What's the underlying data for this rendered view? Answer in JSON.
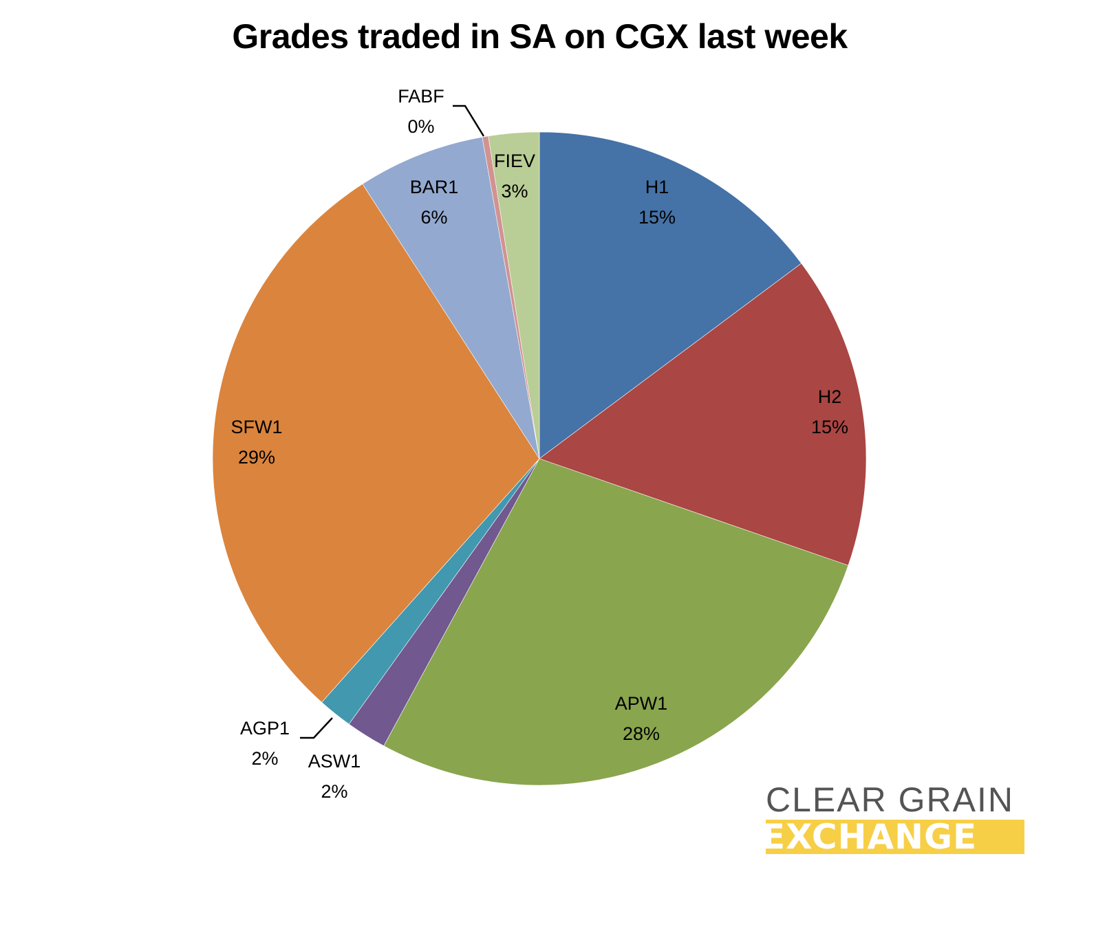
{
  "chart_data": {
    "type": "pie",
    "title": "Grades traded in SA on CGX last week",
    "start_angle_deg": 0,
    "direction": "clockwise",
    "slices": [
      {
        "label": "H1",
        "value": 14.8,
        "display": "15%",
        "color": "#4572a7"
      },
      {
        "label": "H2",
        "value": 15.5,
        "display": "15%",
        "color": "#aa4643"
      },
      {
        "label": "APW1",
        "value": 27.6,
        "display": "28%",
        "color": "#89a54e"
      },
      {
        "label": "ASW1",
        "value": 2.0,
        "display": "2%",
        "color": "#71588f"
      },
      {
        "label": "AGP1",
        "value": 1.7,
        "display": "2%",
        "color": "#4198af"
      },
      {
        "label": "SFW1",
        "value": 29.3,
        "display": "29%",
        "color": "#db843d"
      },
      {
        "label": "BAR1",
        "value": 6.3,
        "display": "6%",
        "color": "#93a9cf"
      },
      {
        "label": "FABF",
        "value": 0.3,
        "display": "0%",
        "color": "#d19392"
      },
      {
        "label": "FIEV",
        "value": 2.5,
        "display": "3%",
        "color": "#b9cd96"
      }
    ],
    "legend": "none",
    "data_labels": "category name and percentage"
  },
  "logo": {
    "line1": "CLEAR GRAIN",
    "line2": "EXCHANGE",
    "text_color": "#545454",
    "band_color": "#f7cf46"
  }
}
